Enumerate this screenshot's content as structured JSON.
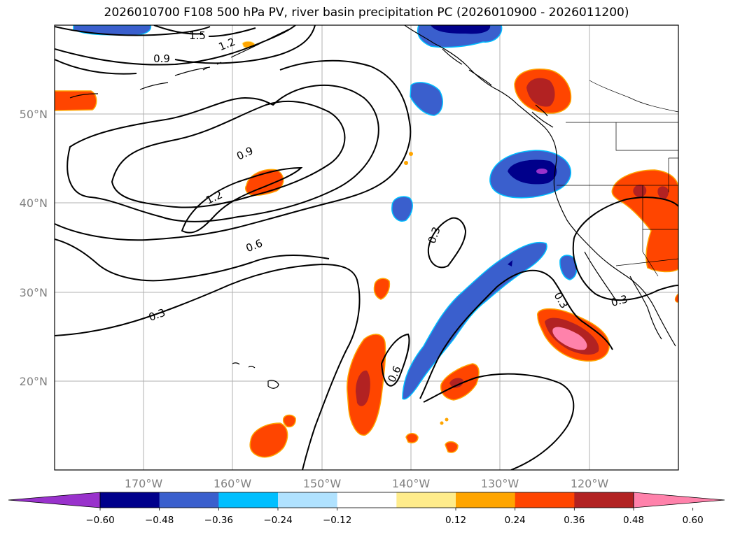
{
  "title": "2026010700 F108 500 hPa PV, river basin precipitation PC (2026010900 - 2026011200)",
  "lat_labels": [
    "50°N",
    "40°N",
    "30°N",
    "20°N"
  ],
  "lon_labels": [
    "170°W",
    "160°W",
    "150°W",
    "140°W",
    "130°W",
    "120°W"
  ],
  "colorbar": {
    "ticks": [
      "−0.60",
      "−0.48",
      "−0.36",
      "−0.24",
      "−0.12",
      "0.12",
      "0.24",
      "0.36",
      "0.48",
      "0.60"
    ],
    "colors": [
      "#9932cc",
      "#00008b",
      "#3a5fcd",
      "#00bfff",
      "#b0e2ff",
      "#ffffff",
      "#ffec8b",
      "#ffa500",
      "#ff4500",
      "#b22222",
      "#ff82ab"
    ]
  },
  "contour_labels": [
    "1.5",
    "1.2",
    "0.9",
    "0.9",
    "1.2",
    "0.6",
    "0.3",
    "0.3",
    "0.3",
    "0.3",
    "0.6"
  ],
  "chart_data": {
    "type": "map",
    "extent": {
      "lon": [
        -180,
        -110
      ],
      "lat": [
        10,
        60
      ]
    },
    "grid": true,
    "pv_contour_levels": [
      0.3,
      0.6,
      0.9,
      1.2,
      1.5
    ],
    "shading_levels": [
      -0.6,
      -0.48,
      -0.36,
      -0.24,
      -0.12,
      0.12,
      0.24,
      0.36,
      0.48,
      0.6
    ]
  }
}
